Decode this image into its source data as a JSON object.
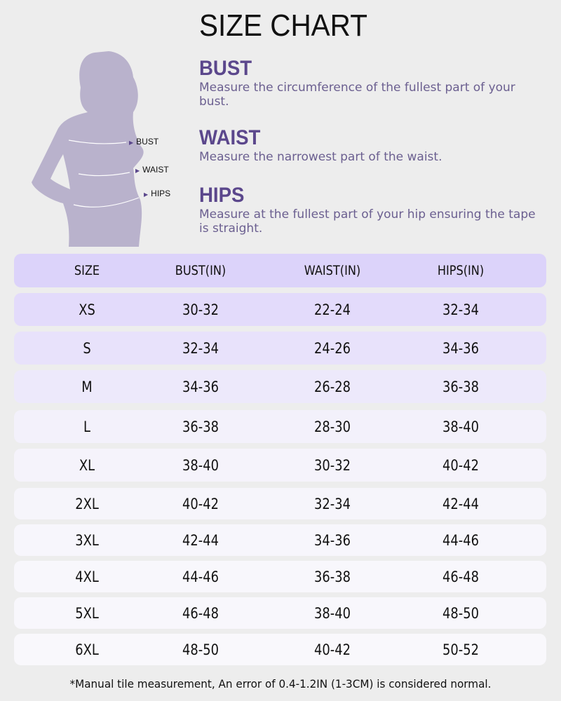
{
  "title": "SIZE CHART",
  "figure_labels": [
    "BUST",
    "WAIST",
    "HIPS"
  ],
  "sections": [
    {
      "heading": "BUST",
      "text": "Measure the circumference of the fullest part of your bust."
    },
    {
      "heading": "WAIST",
      "text": "Measure the narrowest part of the waist."
    },
    {
      "heading": "HIPS",
      "text": "Measure at the fullest part of your hip ensuring the tape is straight."
    }
  ],
  "table": {
    "headers": [
      "SIZE",
      "BUST(IN)",
      "WAIST(IN)",
      "HIPS(IN)"
    ],
    "rows": [
      [
        "XS",
        "30-32",
        "22-24",
        "32-34"
      ],
      [
        "S",
        "32-34",
        "24-26",
        "34-36"
      ],
      [
        "M",
        "34-36",
        "26-28",
        "36-38"
      ],
      [
        "L",
        "36-38",
        "28-30",
        "38-40"
      ],
      [
        "XL",
        "38-40",
        "30-32",
        "40-42"
      ],
      [
        "2XL",
        "40-42",
        "32-34",
        "42-44"
      ],
      [
        "3XL",
        "42-44",
        "34-36",
        "44-46"
      ],
      [
        "4XL",
        "44-46",
        "36-38",
        "46-48"
      ],
      [
        "5XL",
        "46-48",
        "38-40",
        "48-50"
      ],
      [
        "6XL",
        "48-50",
        "40-42",
        "50-52"
      ]
    ]
  },
  "footnote": "*Manual tile measurement, An error of 0.4-1.2IN (1-3CM) is considered normal.",
  "colors": {
    "accent": "#5b478c",
    "silhouette": "#b9b2cc",
    "header_bg": "#dcd3fa",
    "background": "#ededed"
  }
}
